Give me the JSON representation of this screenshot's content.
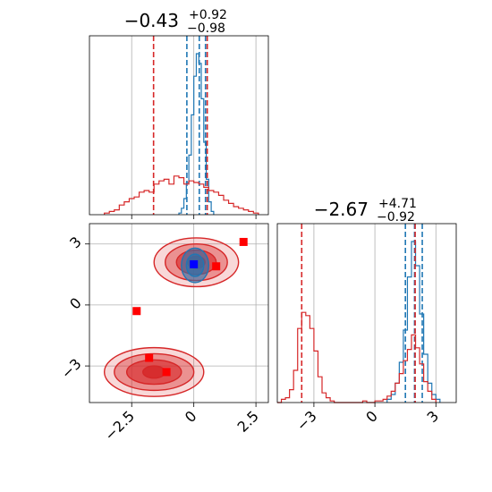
{
  "chart_data": [
    {
      "type": "histogram",
      "panel": "top-left",
      "title": {
        "median": "−0.43",
        "plus": "+0.92",
        "minus": "−0.98"
      },
      "xlim": [
        -4.2,
        3.0
      ],
      "xticks": [
        -2.5,
        0.0,
        2.5
      ],
      "grid": true,
      "series": [
        {
          "color": "#1f77b4",
          "edges": [
            -0.6,
            -0.5,
            -0.4,
            -0.3,
            -0.2,
            -0.1,
            0.0,
            0.1,
            0.2,
            0.3,
            0.4,
            0.5,
            0.6,
            0.7,
            0.8
          ],
          "counts": [
            0.01,
            0.04,
            0.1,
            0.2,
            0.37,
            0.62,
            0.86,
            1.0,
            0.94,
            0.72,
            0.45,
            0.22,
            0.08,
            0.02
          ],
          "quantiles": [
            -0.28,
            0.22,
            0.47
          ]
        },
        {
          "color": "#d62728",
          "edges": [
            -3.6,
            -3.4,
            -3.2,
            -3.0,
            -2.8,
            -2.6,
            -2.4,
            -2.2,
            -2.0,
            -1.8,
            -1.6,
            -1.4,
            -1.2,
            -1.0,
            -0.8,
            -0.6,
            -0.4,
            -0.2,
            0.0,
            0.2,
            0.4,
            0.6,
            0.8,
            1.0,
            1.2,
            1.4,
            1.6,
            1.8,
            2.0,
            2.2,
            2.4,
            2.6
          ],
          "counts": [
            0.01,
            0.02,
            0.03,
            0.06,
            0.08,
            0.1,
            0.11,
            0.14,
            0.15,
            0.14,
            0.19,
            0.21,
            0.22,
            0.19,
            0.24,
            0.23,
            0.19,
            0.21,
            0.2,
            0.19,
            0.17,
            0.15,
            0.14,
            0.12,
            0.09,
            0.07,
            0.05,
            0.04,
            0.03,
            0.02,
            0.01
          ],
          "quantiles": [
            -1.62,
            0.54
          ]
        }
      ]
    },
    {
      "type": "contour",
      "panel": "bottom-left",
      "xlim": [
        -4.2,
        3.0
      ],
      "ylim": [
        -4.8,
        4.0
      ],
      "xticks": [
        -2.5,
        0.0,
        2.5
      ],
      "yticks": [
        3,
        0,
        -3
      ],
      "grid": true,
      "clusters": [
        {
          "color": "#d62728",
          "cx": 0.1,
          "cy": 2.1,
          "levels": [
            [
              1.7,
              1.2
            ],
            [
              1.25,
              0.9
            ],
            [
              0.8,
              0.6
            ],
            [
              0.35,
              0.3
            ]
          ]
        },
        {
          "color": "#d62728",
          "cx": -1.6,
          "cy": -3.3,
          "levels": [
            [
              2.0,
              1.2
            ],
            [
              1.6,
              0.9
            ],
            [
              1.1,
              0.6
            ],
            [
              0.45,
              0.3
            ]
          ]
        },
        {
          "color": "#1f77b4",
          "cx": 0.05,
          "cy": 1.95,
          "levels": [
            [
              0.55,
              0.85
            ],
            [
              0.35,
              0.55
            ]
          ]
        }
      ],
      "points": [
        {
          "x": 2.0,
          "y": 3.1,
          "color": "#ff0000"
        },
        {
          "x": 0.9,
          "y": 1.9,
          "color": "#ff0000"
        },
        {
          "x": -2.3,
          "y": -0.3,
          "color": "#ff0000"
        },
        {
          "x": -1.8,
          "y": -2.6,
          "color": "#ff0000"
        },
        {
          "x": -1.1,
          "y": -3.3,
          "color": "#ff0000"
        },
        {
          "x": 0.0,
          "y": 2.0,
          "color": "#0000ff"
        }
      ]
    },
    {
      "type": "histogram",
      "panel": "bottom-right",
      "title": {
        "median": "−2.67",
        "plus": "+4.71",
        "minus": "−0.92"
      },
      "xlim": [
        -4.8,
        4.0
      ],
      "xticks": [
        -3,
        0,
        3
      ],
      "grid": true,
      "series": [
        {
          "color": "#1f77b4",
          "edges": [
            0.6,
            0.8,
            1.0,
            1.2,
            1.4,
            1.6,
            1.8,
            2.0,
            2.2,
            2.4,
            2.6,
            2.8,
            3.0,
            3.2
          ],
          "counts": [
            0.02,
            0.05,
            0.12,
            0.25,
            0.45,
            0.78,
            1.0,
            0.85,
            0.55,
            0.3,
            0.12,
            0.05,
            0.02
          ],
          "quantiles": [
            1.5,
            1.95,
            2.33
          ]
        },
        {
          "color": "#d62728",
          "edges": [
            -4.8,
            -4.6,
            -4.4,
            -4.2,
            -4.0,
            -3.8,
            -3.6,
            -3.4,
            -3.2,
            -3.0,
            -2.8,
            -2.6,
            -2.4,
            -2.2,
            -2.0,
            -1.8,
            -1.6,
            -1.4,
            -1.2,
            -1.0,
            -0.8,
            -0.6,
            -0.4,
            -0.2,
            0.0,
            0.2,
            0.4,
            0.6,
            0.8,
            1.0,
            1.2,
            1.4,
            1.6,
            1.8,
            2.0,
            2.2,
            2.4,
            2.6,
            2.8,
            3.0
          ],
          "counts": [
            0.0,
            0.02,
            0.03,
            0.08,
            0.2,
            0.46,
            0.56,
            0.54,
            0.46,
            0.32,
            0.16,
            0.06,
            0.03,
            0.01,
            0.0,
            0.0,
            0.0,
            0.0,
            0.0,
            0.0,
            0.0,
            0.01,
            0.0,
            0.0,
            0.01,
            0.01,
            0.02,
            0.04,
            0.07,
            0.12,
            0.18,
            0.26,
            0.33,
            0.42,
            0.34,
            0.24,
            0.13,
            0.07,
            0.02
          ],
          "quantiles": [
            -3.6,
            1.98
          ]
        }
      ]
    }
  ]
}
